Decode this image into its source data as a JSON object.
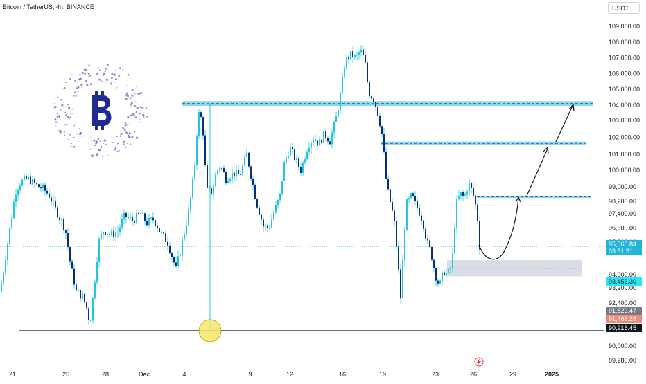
{
  "header": {
    "symbol_title": "Bitcoin / TetherUS, 4h, BINANCE"
  },
  "currency_button": "USDT",
  "chart_data": {
    "type": "candlestick",
    "title": "Bitcoin / TetherUS, 4h, BINANCE",
    "ylim": [
      88900,
      109800
    ],
    "y_ticks": [
      "109,000.00",
      "108,000.00",
      "107,000.00",
      "106,000.00",
      "105,000.00",
      "104,000.00",
      "103,000.00",
      "102,000.00",
      "101,000.00",
      "100,000.00",
      "99,000.00",
      "98,200.00",
      "97,400.00",
      "96,600.00",
      "95,800.00",
      "94,000.00",
      "93,200.00",
      "92,400.00",
      "90,000.00",
      "89,280.00"
    ],
    "x_ticks": [
      "21",
      "25",
      "28",
      "Dec",
      "4",
      "9",
      "12",
      "16",
      "19",
      "23",
      "26",
      "29",
      "2025"
    ],
    "price_markers": [
      {
        "label": "95,565.84",
        "sub": "03:51:51",
        "value": 95565.84,
        "color": "#22b5d8"
      },
      {
        "label": "93,455.30",
        "value": 93455.3,
        "color": "#27e7f2"
      },
      {
        "label": "91,829.47",
        "value": 91829.47,
        "color": "#787b86"
      },
      {
        "label": "91,468.28",
        "value": 91468.28,
        "color": "#f28b74"
      },
      {
        "label": "90,916.45",
        "value": 90916.45,
        "color": "#131722"
      }
    ],
    "zones": [
      {
        "from": 103950,
        "to": 104250,
        "x_start": "Dec 4"
      },
      {
        "from": 101530,
        "to": 101750,
        "x_start": "Dec 18"
      },
      {
        "from": 98400,
        "to": 98500,
        "x_start": "Dec 26"
      },
      {
        "from": 93900,
        "to": 94800,
        "x_start": "Dec 23",
        "style": "gray"
      }
    ],
    "horizontal_line": 90916.45,
    "candle_color": "#0b2d7c",
    "wick_color": "#26c6da",
    "grid": false
  }
}
